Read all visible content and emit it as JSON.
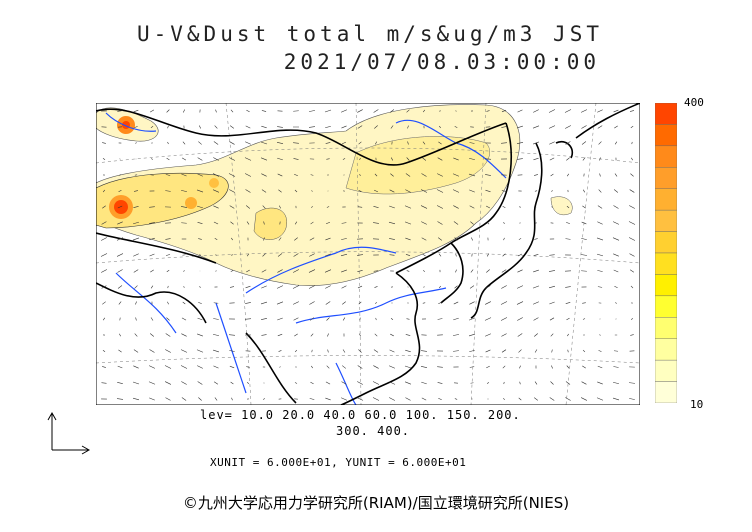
{
  "title_line1": "U-V&Dust total m/s&ug/m3 JST",
  "title_line2": "2021/07/08.03:00:00",
  "colorbar": {
    "max_label": "400",
    "min_label": "10",
    "colors": [
      "#ff4500",
      "#ff6a00",
      "#ff8a1a",
      "#ff9e2a",
      "#ffb030",
      "#ffc040",
      "#ffd030",
      "#ffe020",
      "#fff000",
      "#ffff30",
      "#ffff70",
      "#ffffa0",
      "#ffffc0",
      "#ffffd8"
    ]
  },
  "levels_line1": "lev= 10.0 20.0 40.0 60.0 100. 150. 200.",
  "levels_line2": "300. 400.",
  "units_text": "XUNIT = 6.000E+01, YUNIT = 6.000E+01",
  "credit": "©九州大学応用力学研究所(RIAM)/国立環境研究所(NIES)",
  "colors": {
    "coast": "#000000",
    "river": "#1f4fff",
    "dust_low": "#fff6c4",
    "dust_mid": "#ffe680",
    "dust_high": "#ff6a20"
  }
}
